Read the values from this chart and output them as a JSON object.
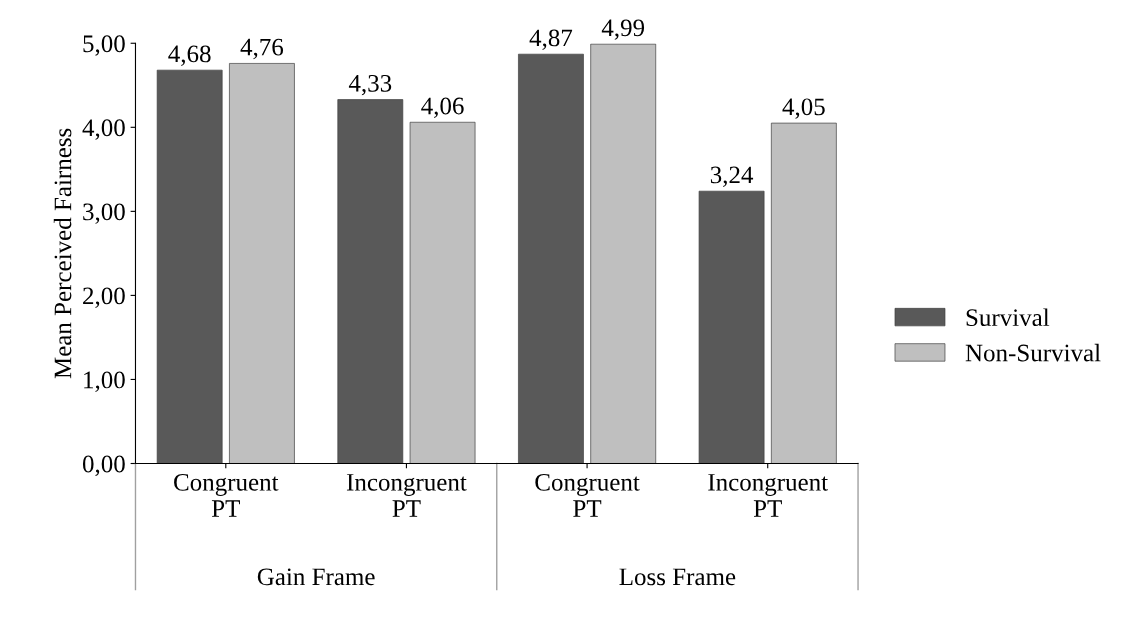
{
  "chart_data": {
    "type": "bar",
    "ylabel": "Mean Perceived Fairness",
    "categories": [
      "Congruent\nPT",
      "Incongruent\nPT",
      "Congruent\nPT",
      "Incongruent\nPT"
    ],
    "series": [
      {
        "name": "Survival",
        "color": "#595959",
        "values": [
          4.68,
          4.33,
          4.87,
          3.24
        ],
        "value_labels": [
          "4,68",
          "4,33",
          "4,87",
          "3,24"
        ]
      },
      {
        "name": "Non-Survival",
        "color": "#bfbfbf",
        "values": [
          4.76,
          4.06,
          4.99,
          4.05
        ],
        "value_labels": [
          "4,76",
          "4,06",
          "4,99",
          "4,05"
        ]
      }
    ],
    "annotations": [
      "Gain Frame",
      "Loss Frame"
    ],
    "ylim": [
      0,
      5
    ],
    "yticks": [
      {
        "value": 0,
        "label": "0,00"
      },
      {
        "value": 1,
        "label": "1,00"
      },
      {
        "value": 2,
        "label": "2,00"
      },
      {
        "value": 3,
        "label": "3,00"
      },
      {
        "value": 4,
        "label": "4,00"
      },
      {
        "value": 5,
        "label": "5,00"
      }
    ],
    "grid": false,
    "legend": "right"
  }
}
